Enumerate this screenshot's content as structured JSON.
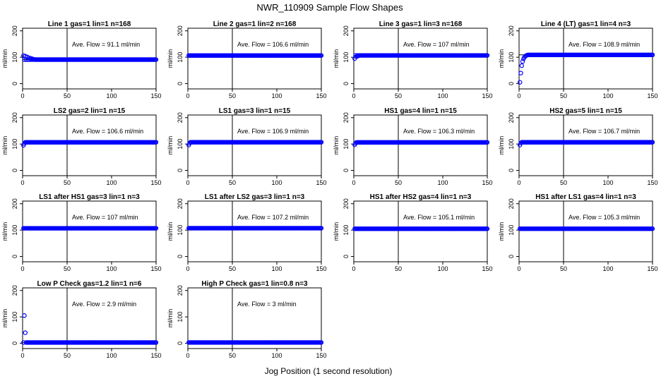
{
  "figure": {
    "title": "NWR_110909  Sample Flow Shapes",
    "xlabel": "Jog Position (1 second resolution)"
  },
  "chart_data": {
    "type": "scatter",
    "x_axis": {
      "range": [
        0,
        150
      ],
      "ticks": [
        0,
        50,
        100,
        150
      ]
    },
    "y_axis": {
      "label": "ml/min",
      "range": [
        -20,
        210
      ],
      "ticks": [
        0,
        100,
        200
      ]
    },
    "vline_x": 50,
    "marker_color": "#0000ff",
    "panels": [
      {
        "title": "Line 1 gas=1 lin=1 n=168",
        "annotation": "Ave. Flow =  91.1  ml/min",
        "ref_y": 91,
        "start_points": [
          [
            1,
            106
          ],
          [
            3,
            104
          ],
          [
            5,
            101
          ],
          [
            7,
            98
          ],
          [
            9,
            96
          ],
          [
            11,
            94
          ],
          [
            13,
            92
          ]
        ],
        "plateau_y": 91
      },
      {
        "title": "Line 2 gas=1 lin=2 n=168",
        "annotation": "Ave. Flow =  106.6  ml/min",
        "ref_y": 106.6,
        "start_points": [],
        "plateau_y": 106.6
      },
      {
        "title": "Line 3 gas=1 lin=3 n=168",
        "annotation": "Ave. Flow =  107  ml/min",
        "ref_y": 107,
        "start_points": [
          [
            1,
            95
          ],
          [
            3,
            102
          ],
          [
            5,
            105
          ]
        ],
        "plateau_y": 107
      },
      {
        "title": "Line 4 (LT) gas=1 lin=4 n=3",
        "annotation": "Ave. Flow =  108.9  ml/min",
        "ref_y": 108.9,
        "start_points": [
          [
            1,
            5
          ],
          [
            2,
            40
          ],
          [
            3,
            68
          ],
          [
            4,
            84
          ],
          [
            5,
            94
          ],
          [
            6,
            100
          ],
          [
            7,
            104
          ],
          [
            8,
            106
          ],
          [
            9,
            108
          ]
        ],
        "plateau_y": 108.9
      },
      {
        "title": "LS2 gas=2 lin=1 n=15",
        "annotation": "Ave. Flow =  106.6  ml/min",
        "ref_y": 106.6,
        "start_points": [
          [
            1,
            95
          ],
          [
            2,
            102
          ]
        ],
        "plateau_y": 106.6
      },
      {
        "title": "LS1 gas=3 lin=1 n=15",
        "annotation": "Ave. Flow =  106.9  ml/min",
        "ref_y": 106.9,
        "start_points": [
          [
            1,
            96
          ],
          [
            2,
            103
          ]
        ],
        "plateau_y": 106.9
      },
      {
        "title": "HS1 gas=4 lin=1 n=15",
        "annotation": "Ave. Flow =  106.3  ml/min",
        "ref_y": 106.3,
        "start_points": [
          [
            1,
            97
          ],
          [
            2,
            103
          ]
        ],
        "plateau_y": 106.3
      },
      {
        "title": "HS2 gas=5 lin=1 n=15",
        "annotation": "Ave. Flow =  106.7  ml/min",
        "ref_y": 106.7,
        "start_points": [
          [
            1,
            96
          ],
          [
            2,
            104
          ]
        ],
        "plateau_y": 106.7
      },
      {
        "title": "LS1 after HS1 gas=3 lin=1 n=3",
        "annotation": "Ave. Flow =  107  ml/min",
        "ref_y": 107,
        "start_points": [],
        "plateau_y": 107
      },
      {
        "title": "LS1 after LS2 gas=3 lin=1 n=3",
        "annotation": "Ave. Flow =  107.2  ml/min",
        "ref_y": 107.2,
        "start_points": [],
        "plateau_y": 107.2
      },
      {
        "title": "HS1 after HS2 gas=4 lin=1 n=3",
        "annotation": "Ave. Flow =  105.1  ml/min",
        "ref_y": 105.1,
        "start_points": [],
        "plateau_y": 105.1
      },
      {
        "title": "HS1 after LS1 gas=4 lin=1 n=3",
        "annotation": "Ave. Flow =  105.3  ml/min",
        "ref_y": 105.3,
        "start_points": [],
        "plateau_y": 105.3
      },
      {
        "title": "Low P Check gas=1.2 lin=1 n=6",
        "annotation": "Ave. Flow =  2.9  ml/min",
        "ref_y": 2.9,
        "start_points": [
          [
            2,
            105
          ],
          [
            3,
            40
          ]
        ],
        "plateau_y": 2.9
      },
      {
        "title": "High P Check gas=1 lin=0.8 n=3",
        "annotation": "Ave. Flow =  3  ml/min",
        "ref_y": 3,
        "start_points": [],
        "plateau_y": 3
      }
    ]
  }
}
